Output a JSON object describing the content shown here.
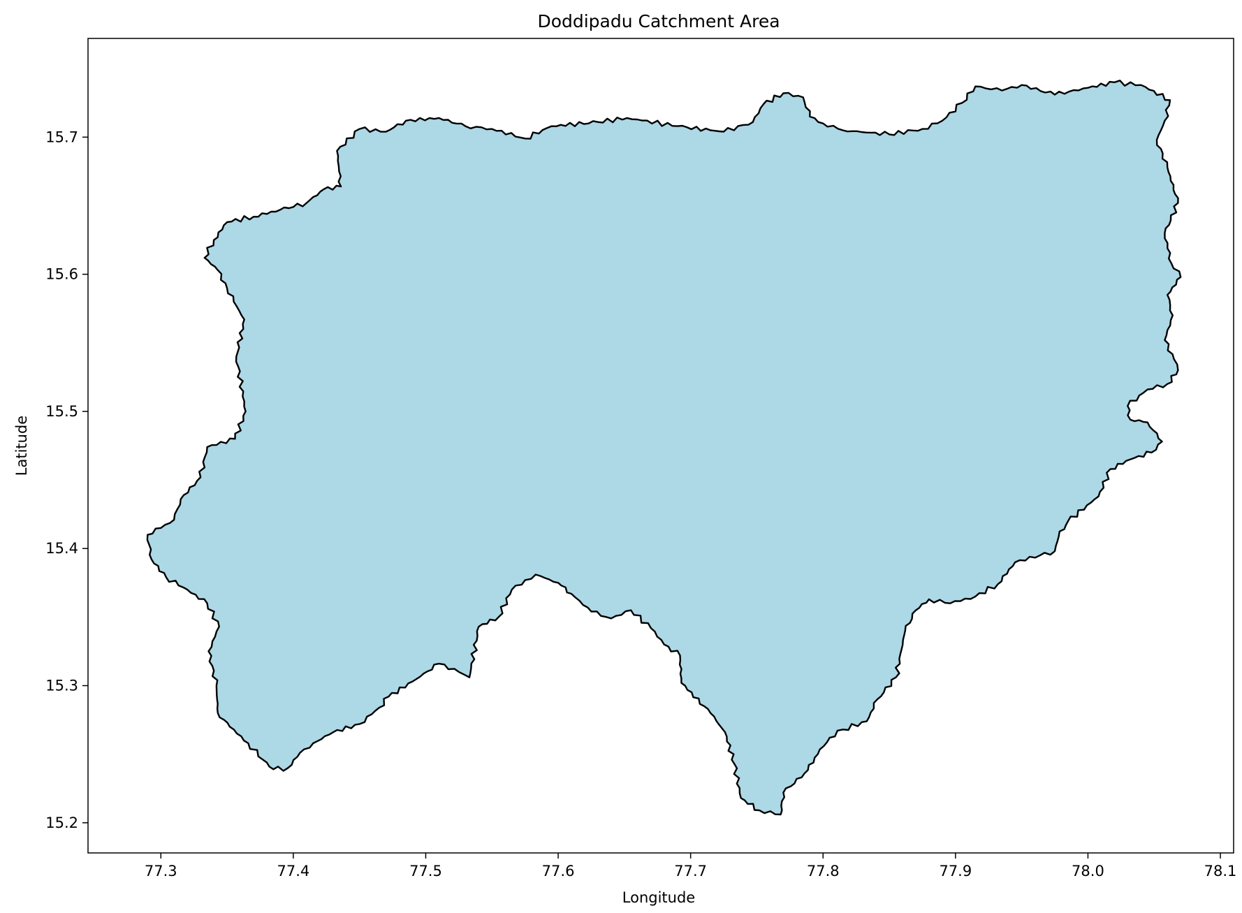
{
  "chart_data": {
    "type": "area",
    "title": "Doddipadu Catchment Area",
    "xlabel": "Longitude",
    "ylabel": "Latitude",
    "xlim": [
      77.245,
      78.11
    ],
    "ylim": [
      15.178,
      15.772
    ],
    "xticks": [
      "77.3",
      "77.4",
      "77.5",
      "77.6",
      "77.7",
      "77.8",
      "77.9",
      "78.0",
      "78.1"
    ],
    "yticks": [
      "15.2",
      "15.3",
      "15.4",
      "15.5",
      "15.6",
      "15.7"
    ],
    "grid": false,
    "fill_color": "#add8e6",
    "edge_color": "#000000",
    "polygon": [
      [
        77.29,
        15.41
      ],
      [
        77.3,
        15.415
      ],
      [
        77.31,
        15.421
      ],
      [
        77.315,
        15.436
      ],
      [
        77.33,
        15.452
      ],
      [
        77.335,
        15.474
      ],
      [
        77.356,
        15.48
      ],
      [
        77.364,
        15.5
      ],
      [
        77.357,
        15.54
      ],
      [
        77.363,
        15.567
      ],
      [
        77.355,
        15.58
      ],
      [
        77.343,
        15.603
      ],
      [
        77.333,
        15.612
      ],
      [
        77.34,
        15.625
      ],
      [
        77.35,
        15.638
      ],
      [
        77.37,
        15.642
      ],
      [
        77.39,
        15.647
      ],
      [
        77.41,
        15.652
      ],
      [
        77.423,
        15.662
      ],
      [
        77.436,
        15.664
      ],
      [
        77.433,
        15.69
      ],
      [
        77.45,
        15.706
      ],
      [
        77.47,
        15.704
      ],
      [
        77.485,
        15.712
      ],
      [
        77.51,
        15.714
      ],
      [
        77.53,
        15.708
      ],
      [
        77.55,
        15.706
      ],
      [
        77.575,
        15.699
      ],
      [
        77.595,
        15.708
      ],
      [
        77.63,
        15.711
      ],
      [
        77.652,
        15.714
      ],
      [
        77.69,
        15.708
      ],
      [
        77.715,
        15.705
      ],
      [
        77.725,
        15.704
      ],
      [
        77.747,
        15.711
      ],
      [
        77.755,
        15.724
      ],
      [
        77.77,
        15.732
      ],
      [
        77.785,
        15.729
      ],
      [
        77.79,
        15.715
      ],
      [
        77.8,
        15.71
      ],
      [
        77.815,
        15.705
      ],
      [
        77.85,
        15.702
      ],
      [
        77.875,
        15.706
      ],
      [
        77.89,
        15.712
      ],
      [
        77.905,
        15.725
      ],
      [
        77.915,
        15.737
      ],
      [
        77.935,
        15.734
      ],
      [
        77.95,
        15.738
      ],
      [
        77.975,
        15.731
      ],
      [
        78.0,
        15.736
      ],
      [
        78.02,
        15.74
      ],
      [
        78.04,
        15.738
      ],
      [
        78.062,
        15.727
      ],
      [
        78.058,
        15.712
      ],
      [
        78.052,
        15.698
      ],
      [
        78.06,
        15.678
      ],
      [
        78.068,
        15.652
      ],
      [
        78.058,
        15.63
      ],
      [
        78.063,
        15.608
      ],
      [
        78.07,
        15.598
      ],
      [
        78.06,
        15.585
      ],
      [
        78.064,
        15.57
      ],
      [
        78.058,
        15.552
      ],
      [
        78.065,
        15.538
      ],
      [
        78.068,
        15.53
      ],
      [
        78.06,
        15.52
      ],
      [
        78.045,
        15.516
      ],
      [
        78.03,
        15.504
      ],
      [
        78.032,
        15.494
      ],
      [
        78.045,
        15.492
      ],
      [
        78.056,
        15.478
      ],
      [
        78.048,
        15.47
      ],
      [
        78.032,
        15.465
      ],
      [
        78.017,
        15.458
      ],
      [
        78.008,
        15.438
      ],
      [
        77.985,
        15.42
      ],
      [
        77.978,
        15.409
      ],
      [
        77.975,
        15.398
      ],
      [
        77.945,
        15.39
      ],
      [
        77.932,
        15.374
      ],
      [
        77.915,
        15.365
      ],
      [
        77.896,
        15.36
      ],
      [
        77.88,
        15.363
      ],
      [
        77.87,
        15.355
      ],
      [
        77.862,
        15.34
      ],
      [
        77.855,
        15.306
      ],
      [
        77.841,
        15.29
      ],
      [
        77.833,
        15.274
      ],
      [
        77.815,
        15.268
      ],
      [
        77.805,
        15.262
      ],
      [
        77.796,
        15.25
      ],
      [
        77.786,
        15.236
      ],
      [
        77.77,
        15.222
      ],
      [
        77.768,
        15.206
      ],
      [
        77.752,
        15.209
      ],
      [
        77.738,
        15.218
      ],
      [
        77.733,
        15.243
      ],
      [
        77.726,
        15.266
      ],
      [
        77.715,
        15.28
      ],
      [
        77.693,
        15.302
      ],
      [
        77.692,
        15.322
      ],
      [
        77.68,
        15.33
      ],
      [
        77.67,
        15.342
      ],
      [
        77.655,
        15.355
      ],
      [
        77.64,
        15.349
      ],
      [
        77.625,
        15.354
      ],
      [
        77.61,
        15.367
      ],
      [
        77.6,
        15.375
      ],
      [
        77.583,
        15.381
      ],
      [
        77.575,
        15.377
      ],
      [
        77.565,
        15.37
      ],
      [
        77.555,
        15.35
      ],
      [
        77.54,
        15.343
      ],
      [
        77.533,
        15.306
      ],
      [
        77.525,
        15.31
      ],
      [
        77.51,
        15.316
      ],
      [
        77.49,
        15.303
      ],
      [
        77.472,
        15.292
      ],
      [
        77.465,
        15.284
      ],
      [
        77.45,
        15.272
      ],
      [
        77.43,
        15.266
      ],
      [
        77.415,
        15.258
      ],
      [
        77.405,
        15.251
      ],
      [
        77.396,
        15.24
      ],
      [
        77.385,
        15.239
      ],
      [
        77.377,
        15.246
      ],
      [
        77.366,
        15.258
      ],
      [
        77.352,
        15.27
      ],
      [
        77.343,
        15.28
      ],
      [
        77.342,
        15.3
      ],
      [
        77.336,
        15.325
      ],
      [
        77.344,
        15.343
      ],
      [
        77.335,
        15.36
      ],
      [
        77.32,
        15.37
      ],
      [
        77.304,
        15.379
      ],
      [
        77.293,
        15.392
      ],
      [
        77.29,
        15.41
      ]
    ]
  }
}
